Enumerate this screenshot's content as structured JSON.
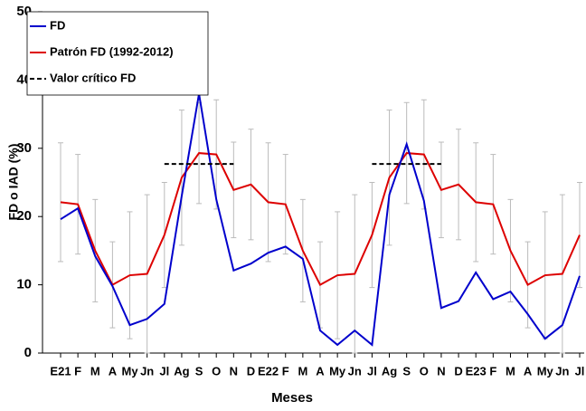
{
  "chart_data": {
    "type": "line",
    "x_label": "Meses",
    "y_label": "FD o IAD (%)",
    "categories": [
      "E21",
      "F",
      "M",
      "A",
      "My",
      "Jn",
      "Jl",
      "Ag",
      "S",
      "O",
      "N",
      "D",
      "E22",
      "F",
      "M",
      "A",
      "My",
      "Jn",
      "Jl",
      "Ag",
      "S",
      "O",
      "N",
      "D",
      "E23",
      "F",
      "M",
      "A",
      "My",
      "Jn",
      "Jl"
    ],
    "ylim": [
      0,
      50
    ],
    "yticks": [
      0,
      10,
      20,
      30,
      40,
      50
    ],
    "grid": false,
    "legend": "upper left",
    "series": [
      {
        "name": "FD",
        "color": "#0000cc",
        "style": "solid",
        "values": [
          19.6,
          21.2,
          14.2,
          9.8,
          4.1,
          5.0,
          7.2,
          23,
          38,
          22.5,
          12.1,
          13.1,
          14.7,
          15.6,
          13.8,
          3.3,
          1.2,
          3.3,
          1.2,
          23.2,
          30.6,
          22.3,
          6.6,
          7.6,
          11.8,
          7.9,
          9.0,
          5.7,
          2.1,
          4.1,
          11.3
        ]
      },
      {
        "name": "Patrón FD (1992-2012)",
        "color": "#dd0000",
        "style": "solid",
        "error_color": "#bbbbbb",
        "values": [
          22.1,
          21.8,
          15,
          10,
          11.4,
          11.6,
          17.3,
          25.7,
          29.3,
          29.1,
          23.9,
          24.7,
          22.1,
          21.8,
          15,
          10,
          11.4,
          11.6,
          17.3,
          25.7,
          29.3,
          29.1,
          23.9,
          24.7,
          22.1,
          21.8,
          15,
          10,
          11.4,
          11.6,
          17.3
        ],
        "errors": [
          8.7,
          7.3,
          7.5,
          6.3,
          9.3,
          11.6,
          7.7,
          9.9,
          7.4,
          8,
          7,
          8.1,
          8.7,
          7.3,
          7.5,
          6.3,
          9.3,
          11.6,
          7.7,
          9.9,
          7.4,
          8,
          7,
          8.1,
          8.7,
          7.3,
          7.5,
          6.3,
          9.3,
          11.6,
          7.7
        ]
      },
      {
        "name": "Valor crítico FD",
        "color": "#000000",
        "style": "dashed",
        "values": [
          null,
          null,
          null,
          null,
          null,
          null,
          27.7,
          27.7,
          27.7,
          27.7,
          27.7,
          null,
          null,
          null,
          null,
          null,
          null,
          null,
          27.7,
          27.7,
          27.7,
          27.7,
          27.7,
          null,
          null,
          null,
          null,
          null,
          null,
          null,
          null
        ]
      }
    ]
  }
}
